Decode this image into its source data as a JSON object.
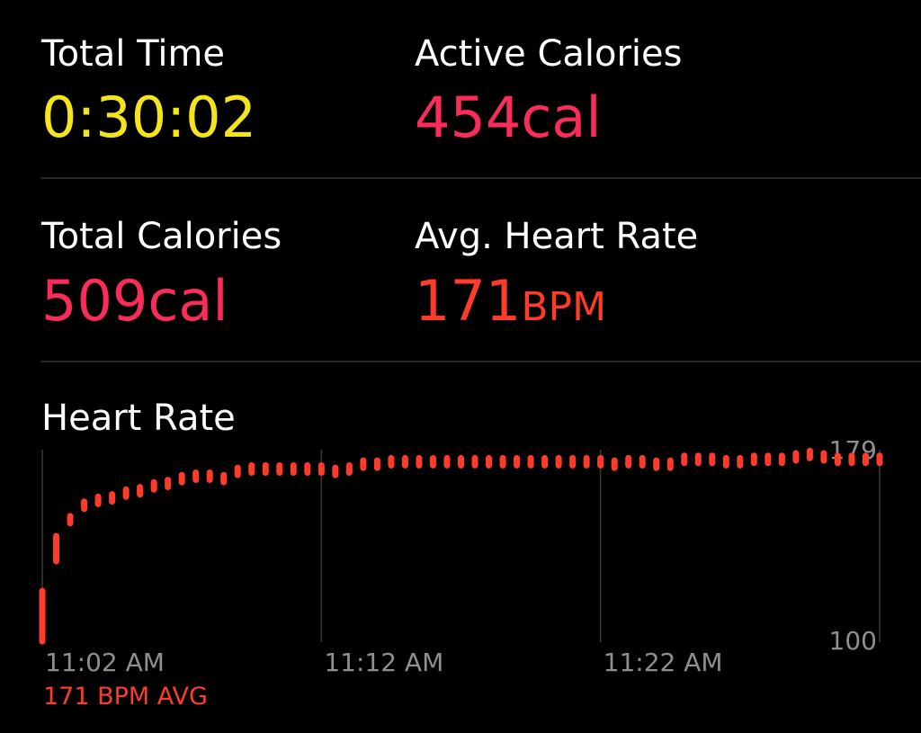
{
  "metrics": [
    {
      "label": "Total Time",
      "value": "0:30:02",
      "unit": null,
      "color": "#f4e41c"
    },
    {
      "label": "Active Calories",
      "value": "454",
      "unit": "cal",
      "color": "#fa2c5a"
    },
    {
      "label": "Total Calories",
      "value": "509",
      "unit": "cal",
      "color": "#fa2c5a"
    },
    {
      "label": "Avg. Heart Rate",
      "value": "171",
      "unit": "BPM",
      "color": "#ff3b2a"
    }
  ],
  "chart_data": {
    "type": "range-dots",
    "title": "Heart Rate",
    "annotation": "171 BPM AVG",
    "color": "#ff3b2a",
    "x": [
      662,
      662.5,
      663,
      663.5,
      664,
      664.5,
      665,
      665.5,
      666,
      666.5,
      667,
      667.5,
      668,
      668.5,
      669,
      669.5,
      670,
      670.5,
      671,
      671.5,
      672,
      672.5,
      673,
      673.5,
      674,
      674.5,
      675,
      675.5,
      676,
      676.5,
      677,
      677.5,
      678,
      678.5,
      679,
      679.5,
      680,
      680.5,
      681,
      681.5,
      682,
      682.5,
      683,
      683.5,
      684,
      684.5,
      685,
      685.5,
      686,
      686.5,
      687,
      687.5,
      688,
      688.5,
      689,
      689.5,
      690,
      690.5,
      691,
      691.5,
      692
    ],
    "values": [
      110,
      138,
      150,
      156,
      158,
      159,
      161,
      162,
      164,
      165,
      167,
      168,
      168,
      167,
      170,
      171,
      171,
      171,
      171,
      171,
      171,
      170,
      171,
      173,
      173,
      174,
      174,
      174,
      174,
      174,
      174,
      174,
      174,
      174,
      174,
      174,
      174,
      174,
      174,
      174,
      174,
      173,
      174,
      174,
      173,
      173,
      175,
      175,
      175,
      174,
      174,
      175,
      175,
      175,
      176,
      177,
      176,
      175,
      175,
      175,
      175
    ],
    "xlim": [
      662,
      692
    ],
    "xticks": [
      {
        "value": 662,
        "label": "11:02 AM"
      },
      {
        "value": 672,
        "label": "11:12 AM"
      },
      {
        "value": 682,
        "label": "11:22 AM"
      }
    ],
    "ylim": [
      100,
      179
    ],
    "yticks": [
      100,
      179
    ],
    "grid": true
  }
}
